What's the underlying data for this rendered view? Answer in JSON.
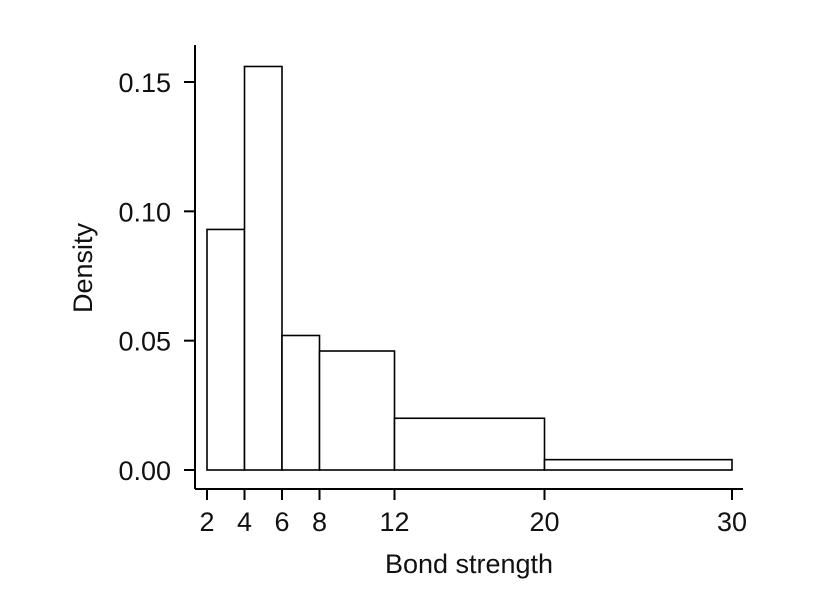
{
  "chart_data": {
    "type": "bar",
    "subtype": "histogram",
    "title": "",
    "xlabel": "Bond strength",
    "ylabel": "Density",
    "bins": [
      {
        "x0": 2,
        "x1": 4,
        "density": 0.093
      },
      {
        "x0": 4,
        "x1": 6,
        "density": 0.156
      },
      {
        "x0": 6,
        "x1": 8,
        "density": 0.052
      },
      {
        "x0": 8,
        "x1": 12,
        "density": 0.046
      },
      {
        "x0": 12,
        "x1": 20,
        "density": 0.02
      },
      {
        "x0": 20,
        "x1": 30,
        "density": 0.004
      }
    ],
    "xticks": [
      2,
      4,
      6,
      8,
      12,
      20,
      30
    ],
    "xtick_labels": [
      "2",
      "4",
      "6",
      "8",
      "12",
      "20",
      "30"
    ],
    "yticks": [
      0,
      0.05,
      0.1,
      0.15
    ],
    "ytick_labels": [
      "0.00",
      "0.05",
      "0.10",
      "0.15"
    ],
    "xlim": [
      2,
      30
    ],
    "ylim": [
      0,
      0.15
    ],
    "grid": false,
    "legend": "none",
    "colors": {
      "bar_fill": "#ffffff",
      "bar_edge": "#000000",
      "axis": "#000000",
      "text": "#111111"
    }
  }
}
